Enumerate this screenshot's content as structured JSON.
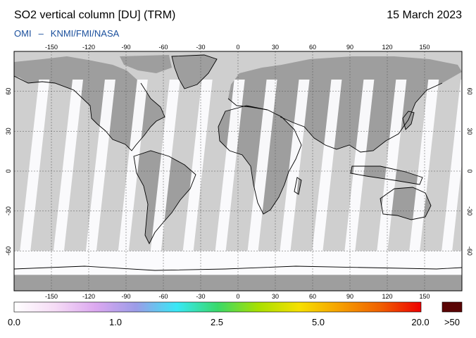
{
  "header": {
    "title": "SO2 vertical column [DU] (TRM)",
    "date": "15 March 2023",
    "instrument": "OMI",
    "separator": "–",
    "agencies": "KNMI/FMI/NASA"
  },
  "map": {
    "projection": "equirectangular",
    "lon_ticks": [
      -150,
      -120,
      -90,
      -60,
      -30,
      0,
      30,
      60,
      90,
      120,
      150
    ],
    "lat_ticks": [
      60,
      30,
      0,
      -30,
      -60
    ],
    "lon_tick_labels": [
      "-150",
      "-120",
      "-90",
      "-60",
      "-30",
      "0",
      "30",
      "60",
      "90",
      "120",
      "150"
    ],
    "lat_tick_labels": [
      "60",
      "30",
      "0",
      "-30",
      "-60"
    ],
    "colors": {
      "no_data": "#cfcfcf",
      "land_no_data": "#9e9e9e",
      "observed": "#fbfbfd",
      "coast": "#000000",
      "grid": "#555555"
    }
  },
  "colorbar": {
    "labels": [
      {
        "text": "0.0",
        "value": 0.0
      },
      {
        "text": "1.0",
        "value": 1.0
      },
      {
        "text": "2.5",
        "value": 2.5
      },
      {
        "text": "5.0",
        "value": 5.0
      },
      {
        "text": "20.0",
        "value": 20.0
      }
    ],
    "overflow_label": ">50",
    "overflow_color": "#5a0505",
    "stops": [
      "#ffffff",
      "#f6dcf6",
      "#dca8f0",
      "#9c9ce8",
      "#38e8f6",
      "#39d96a",
      "#a8e000",
      "#f6e000",
      "#f6a000",
      "#f06000",
      "#ee0000"
    ]
  }
}
